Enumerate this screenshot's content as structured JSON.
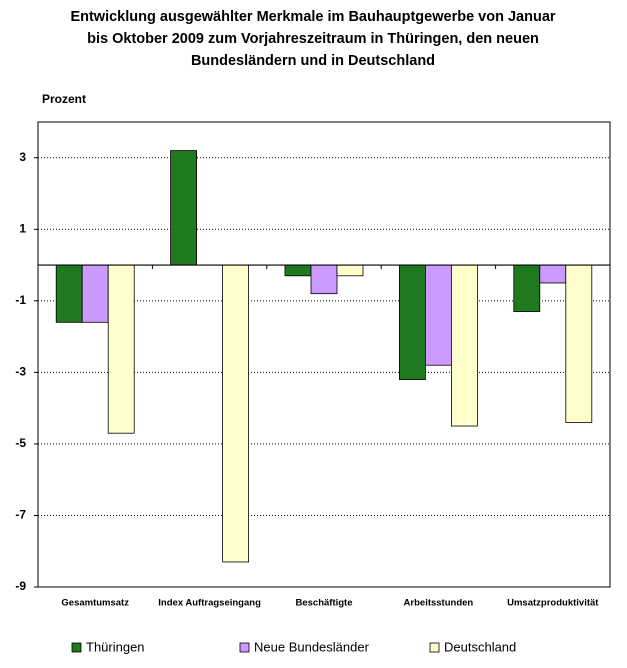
{
  "chart_data": {
    "type": "bar",
    "title": [
      "Entwicklung ausgewählter Merkmale im Bauhauptgewerbe von Januar",
      "bis Oktober 2009 zum Vorjahreszeitraum in Thüringen, den neuen",
      "Bundesländern und in Deutschland"
    ],
    "y_label": "Prozent",
    "categories": [
      "Gesamtumsatz",
      "Index Auftragseingang",
      "Beschäftigte",
      "Arbeitsstunden",
      "Umsatzproduktivität"
    ],
    "series": [
      {
        "name": "Thüringen",
        "color": "#1f7a1f",
        "values": [
          -1.6,
          3.2,
          -0.3,
          -3.2,
          -1.3
        ]
      },
      {
        "name": "Neue Bundesländer",
        "color": "#cc99ff",
        "values": [
          -1.6,
          null,
          -0.8,
          -2.8,
          -0.5
        ]
      },
      {
        "name": "Deutschland",
        "color": "#ffffcc",
        "values": [
          -4.7,
          -8.3,
          -0.3,
          -4.5,
          -4.4
        ]
      }
    ],
    "ylim": [
      -9,
      4
    ],
    "yticks": [
      -9,
      -7,
      -5,
      -3,
      -1,
      1,
      3
    ],
    "grid": true
  }
}
